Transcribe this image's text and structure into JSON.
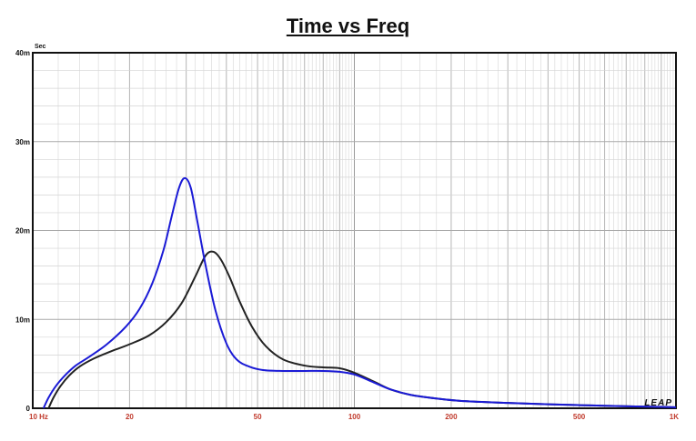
{
  "chart_data": {
    "type": "line",
    "title": "Time vs Freq",
    "ylabel": "Sec",
    "xscale": "log",
    "xlim": [
      10,
      1000
    ],
    "ylim": [
      0,
      0.04
    ],
    "x_ticks": [
      "10 Hz",
      "20",
      "50",
      "100",
      "200",
      "500",
      "1K"
    ],
    "y_ticks": [
      "0",
      "10m",
      "20m",
      "30m",
      "40m"
    ],
    "grid": true,
    "colors": {
      "black_series": "#222222",
      "blue_series": "#1a1ad6",
      "tick_x": "#c0392b"
    },
    "series": [
      {
        "color": "#222222",
        "x": [
          11.2,
          11.6,
          12.2,
          13.0,
          14.0,
          15.5,
          17.5,
          20.0,
          23.0,
          26.0,
          29.0,
          32.0,
          34.5,
          36.5,
          38.5,
          41.0,
          44.0,
          48.0,
          53.0,
          60.0,
          70.0,
          80.0,
          90.0,
          100.0,
          115.0,
          130.0,
          150.0,
          180.0,
          220.0,
          300.0,
          400.0,
          500.0,
          600.0,
          750.0,
          900.0,
          1000.0
        ],
        "y": [
          0.0,
          0.0012,
          0.0025,
          0.0037,
          0.0047,
          0.0056,
          0.0064,
          0.0072,
          0.0082,
          0.0097,
          0.0118,
          0.0148,
          0.0172,
          0.0176,
          0.0167,
          0.0147,
          0.012,
          0.0092,
          0.007,
          0.0055,
          0.0048,
          0.0046,
          0.0045,
          0.004,
          0.003,
          0.0021,
          0.0015,
          0.0011,
          0.0008,
          0.0006,
          0.00045,
          0.00035,
          0.00028,
          0.0002,
          0.00014,
          0.0001
        ]
      },
      {
        "color": "#1a1ad6",
        "x": [
          10.8,
          11.2,
          11.8,
          12.6,
          13.6,
          15.0,
          17.0,
          19.5,
          21.5,
          23.5,
          25.5,
          27.0,
          28.5,
          29.7,
          31.0,
          32.5,
          34.5,
          37.0,
          40.0,
          43.0,
          47.0,
          52.0,
          60.0,
          70.0,
          80.0,
          90.0,
          100.0,
          115.0,
          130.0,
          150.0,
          180.0,
          220.0,
          300.0,
          400.0,
          500.0,
          600.0,
          750.0,
          900.0,
          1000.0
        ],
        "y": [
          0.0,
          0.0012,
          0.0025,
          0.0037,
          0.0048,
          0.0058,
          0.0072,
          0.0092,
          0.0112,
          0.014,
          0.0178,
          0.0215,
          0.0248,
          0.0259,
          0.0248,
          0.021,
          0.016,
          0.011,
          0.0073,
          0.0055,
          0.0047,
          0.0043,
          0.0042,
          0.0042,
          0.0042,
          0.0041,
          0.0038,
          0.0029,
          0.0021,
          0.0015,
          0.0011,
          0.0008,
          0.0006,
          0.00045,
          0.00035,
          0.00028,
          0.0002,
          0.00015,
          0.00012
        ]
      }
    ]
  },
  "logo_text": "LEAP"
}
